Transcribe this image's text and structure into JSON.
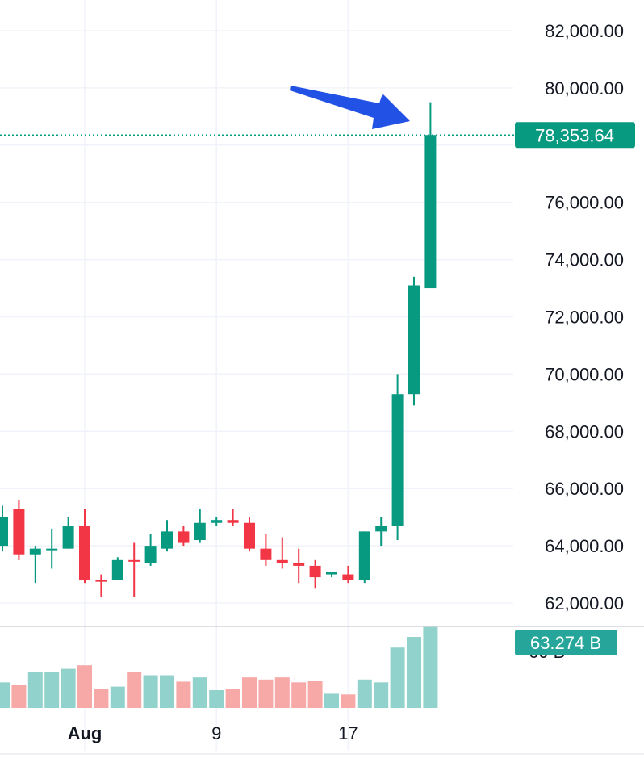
{
  "chart_data": {
    "type": "candlestick",
    "price_axis": {
      "ticks": [
        62000,
        64000,
        66000,
        68000,
        70000,
        72000,
        74000,
        76000,
        80000,
        82000
      ],
      "tick_labels": [
        "62,000.00",
        "64,000.00",
        "66,000.00",
        "68,000.00",
        "70,000.00",
        "72,000.00",
        "74,000.00",
        "76,000.00",
        "80,000.00",
        "82,000.00"
      ],
      "range": [
        61200,
        83000
      ]
    },
    "current_price": 78353.64,
    "current_price_label": "78,353.64",
    "volume_label": "63.274 B",
    "volume_axis_partial_label": "60 B",
    "x_labels": [
      {
        "text": "Aug",
        "index": 5,
        "bold": true
      },
      {
        "text": "9",
        "index": 13,
        "bold": false
      },
      {
        "text": "17",
        "index": 21,
        "bold": false
      }
    ],
    "candles": [
      {
        "o": 64000,
        "h": 65400,
        "l": 63800,
        "c": 65000,
        "dir": "up",
        "vol": 0.36
      },
      {
        "o": 65300,
        "h": 65600,
        "l": 63500,
        "c": 63700,
        "dir": "down",
        "vol": 0.32
      },
      {
        "o": 63700,
        "h": 64000,
        "l": 62700,
        "c": 63900,
        "dir": "up",
        "vol": 0.5
      },
      {
        "o": 63900,
        "h": 64600,
        "l": 63200,
        "c": 63900,
        "dir": "up",
        "vol": 0.5
      },
      {
        "o": 63900,
        "h": 65000,
        "l": 63900,
        "c": 64700,
        "dir": "up",
        "vol": 0.55
      },
      {
        "o": 64700,
        "h": 65300,
        "l": 62700,
        "c": 62800,
        "dir": "down",
        "vol": 0.6
      },
      {
        "o": 62800,
        "h": 63000,
        "l": 62200,
        "c": 62800,
        "dir": "down",
        "vol": 0.27
      },
      {
        "o": 62800,
        "h": 63600,
        "l": 62800,
        "c": 63500,
        "dir": "up",
        "vol": 0.3
      },
      {
        "o": 63500,
        "h": 64100,
        "l": 62200,
        "c": 63500,
        "dir": "down",
        "vol": 0.5
      },
      {
        "o": 63400,
        "h": 64400,
        "l": 63300,
        "c": 64000,
        "dir": "up",
        "vol": 0.46
      },
      {
        "o": 63900,
        "h": 64900,
        "l": 63800,
        "c": 64500,
        "dir": "up",
        "vol": 0.46
      },
      {
        "o": 64500,
        "h": 64700,
        "l": 64000,
        "c": 64100,
        "dir": "down",
        "vol": 0.37
      },
      {
        "o": 64200,
        "h": 65300,
        "l": 64100,
        "c": 64800,
        "dir": "up",
        "vol": 0.43
      },
      {
        "o": 64800,
        "h": 65000,
        "l": 64700,
        "c": 64900,
        "dir": "up",
        "vol": 0.25
      },
      {
        "o": 64900,
        "h": 65300,
        "l": 64700,
        "c": 64800,
        "dir": "down",
        "vol": 0.27
      },
      {
        "o": 64800,
        "h": 65000,
        "l": 63800,
        "c": 63900,
        "dir": "down",
        "vol": 0.43
      },
      {
        "o": 63900,
        "h": 64400,
        "l": 63300,
        "c": 63500,
        "dir": "down",
        "vol": 0.4
      },
      {
        "o": 63500,
        "h": 64300,
        "l": 63200,
        "c": 63400,
        "dir": "down",
        "vol": 0.43
      },
      {
        "o": 63400,
        "h": 63900,
        "l": 62700,
        "c": 63300,
        "dir": "down",
        "vol": 0.36
      },
      {
        "o": 63300,
        "h": 63500,
        "l": 62500,
        "c": 62900,
        "dir": "down",
        "vol": 0.38
      },
      {
        "o": 63000,
        "h": 63100,
        "l": 62900,
        "c": 63100,
        "dir": "up",
        "vol": 0.2
      },
      {
        "o": 63000,
        "h": 63300,
        "l": 62700,
        "c": 62800,
        "dir": "down",
        "vol": 0.19
      },
      {
        "o": 62800,
        "h": 64500,
        "l": 62700,
        "c": 64500,
        "dir": "up",
        "vol": 0.4
      },
      {
        "o": 64500,
        "h": 65000,
        "l": 64000,
        "c": 64700,
        "dir": "up",
        "vol": 0.36
      },
      {
        "o": 64700,
        "h": 70000,
        "l": 64200,
        "c": 69300,
        "dir": "up",
        "vol": 0.85
      },
      {
        "o": 69300,
        "h": 73400,
        "l": 68900,
        "c": 73100,
        "dir": "up",
        "vol": 1.0
      },
      {
        "o": 73000,
        "h": 79500,
        "l": 73000,
        "c": 78353.64,
        "dir": "up",
        "vol": 1.15
      }
    ],
    "annotation": "arrow pointing to latest high",
    "colors": {
      "up": "#089981",
      "down": "#f23645",
      "up_volume": "#92d2cc",
      "down_volume": "#f7a9a7",
      "grid": "#f0f3fa",
      "price_tag": "#089981",
      "volume_tag": "#26a69a",
      "arrow": "#2251e6",
      "text": "#131722"
    }
  }
}
